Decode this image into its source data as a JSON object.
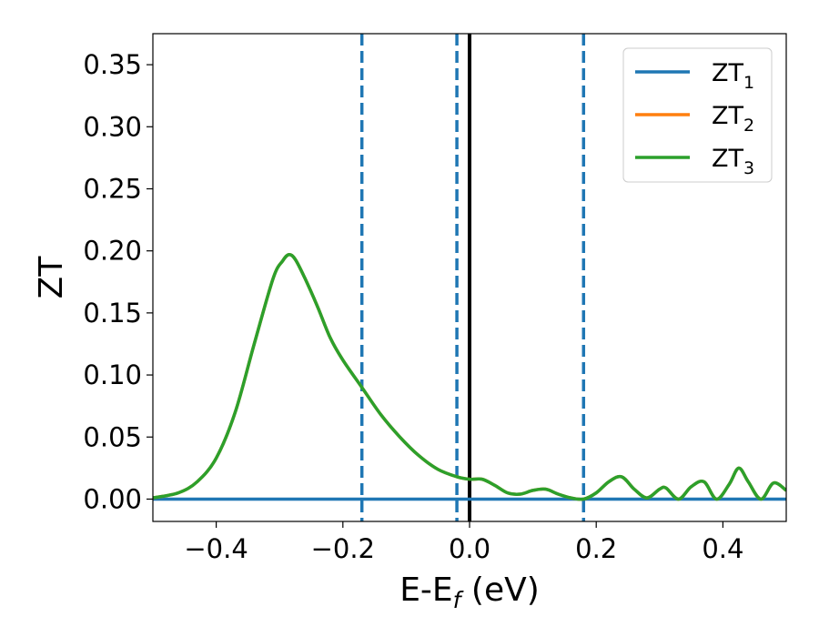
{
  "chart_data": {
    "type": "line",
    "title": "",
    "xlabel": "E-E$_f$ (eV)",
    "xlabel_main": "E-E",
    "xlabel_sub": "f",
    "xlabel_unit": " (eV)",
    "ylabel": "ZT",
    "xlim": [
      -0.5,
      0.5
    ],
    "ylim": [
      -0.018,
      0.375
    ],
    "xticks": [
      -0.4,
      -0.2,
      0.0,
      0.2,
      0.4
    ],
    "xtick_labels": [
      "−0.4",
      "−0.2",
      "0.0",
      "0.2",
      "0.4"
    ],
    "yticks": [
      0.0,
      0.05,
      0.1,
      0.15,
      0.2,
      0.25,
      0.3,
      0.35
    ],
    "ytick_labels": [
      "0.00",
      "0.05",
      "0.10",
      "0.15",
      "0.20",
      "0.25",
      "0.30",
      "0.35"
    ],
    "grid": false,
    "legend_position": "top-right",
    "series": [
      {
        "name": "ZT1",
        "label_main": "ZT",
        "label_sub": "1",
        "color": "#1f77b4",
        "x": [
          -0.5,
          0.5
        ],
        "y": [
          0.0,
          0.0
        ]
      },
      {
        "name": "ZT2",
        "label_main": "ZT",
        "label_sub": "2",
        "color": "#ff7f0e",
        "x": [
          -0.5,
          -0.46,
          -0.43,
          -0.4,
          -0.37,
          -0.34,
          -0.31,
          -0.295,
          -0.285,
          -0.275,
          -0.26,
          -0.24,
          -0.22,
          -0.2,
          -0.17,
          -0.14,
          -0.11,
          -0.08,
          -0.05,
          -0.02,
          0.0,
          0.02,
          0.04,
          0.06,
          0.08,
          0.1,
          0.12,
          0.14,
          0.16,
          0.18,
          0.2,
          0.22,
          0.24,
          0.26,
          0.28,
          0.3,
          0.31,
          0.33,
          0.35,
          0.37,
          0.39,
          0.41,
          0.425,
          0.44,
          0.46,
          0.48,
          0.5
        ],
        "y": [
          0.001,
          0.005,
          0.014,
          0.033,
          0.07,
          0.125,
          0.178,
          0.192,
          0.197,
          0.193,
          0.178,
          0.155,
          0.13,
          0.112,
          0.09,
          0.068,
          0.05,
          0.035,
          0.024,
          0.018,
          0.016,
          0.016,
          0.011,
          0.005,
          0.004,
          0.007,
          0.008,
          0.004,
          0.001,
          0.0,
          0.005,
          0.014,
          0.018,
          0.008,
          0.001,
          0.008,
          0.009,
          0.0,
          0.01,
          0.014,
          0.0,
          0.012,
          0.025,
          0.014,
          0.0,
          0.013,
          0.007
        ]
      },
      {
        "name": "ZT3",
        "label_main": "ZT",
        "label_sub": "3",
        "color": "#2ca02c",
        "x": [
          -0.5,
          -0.46,
          -0.43,
          -0.4,
          -0.37,
          -0.34,
          -0.31,
          -0.295,
          -0.285,
          -0.275,
          -0.26,
          -0.24,
          -0.22,
          -0.2,
          -0.17,
          -0.14,
          -0.11,
          -0.08,
          -0.05,
          -0.02,
          0.0,
          0.02,
          0.04,
          0.06,
          0.08,
          0.1,
          0.12,
          0.14,
          0.16,
          0.18,
          0.2,
          0.22,
          0.24,
          0.26,
          0.28,
          0.3,
          0.31,
          0.33,
          0.35,
          0.37,
          0.39,
          0.41,
          0.425,
          0.44,
          0.46,
          0.48,
          0.5
        ],
        "y": [
          0.001,
          0.005,
          0.014,
          0.033,
          0.07,
          0.125,
          0.178,
          0.192,
          0.197,
          0.193,
          0.178,
          0.155,
          0.13,
          0.112,
          0.09,
          0.068,
          0.05,
          0.035,
          0.024,
          0.018,
          0.016,
          0.016,
          0.011,
          0.005,
          0.004,
          0.007,
          0.008,
          0.004,
          0.001,
          0.0,
          0.005,
          0.014,
          0.018,
          0.008,
          0.001,
          0.008,
          0.009,
          0.0,
          0.01,
          0.014,
          0.0,
          0.012,
          0.025,
          0.014,
          0.0,
          0.013,
          0.007
        ]
      }
    ],
    "vlines": [
      {
        "x": -0.17,
        "style": "dashed",
        "color": "#1f77b4"
      },
      {
        "x": -0.02,
        "style": "dashed",
        "color": "#1f77b4"
      },
      {
        "x": 0.0,
        "style": "solid",
        "color": "#000000"
      },
      {
        "x": 0.18,
        "style": "dashed",
        "color": "#1f77b4"
      }
    ]
  }
}
